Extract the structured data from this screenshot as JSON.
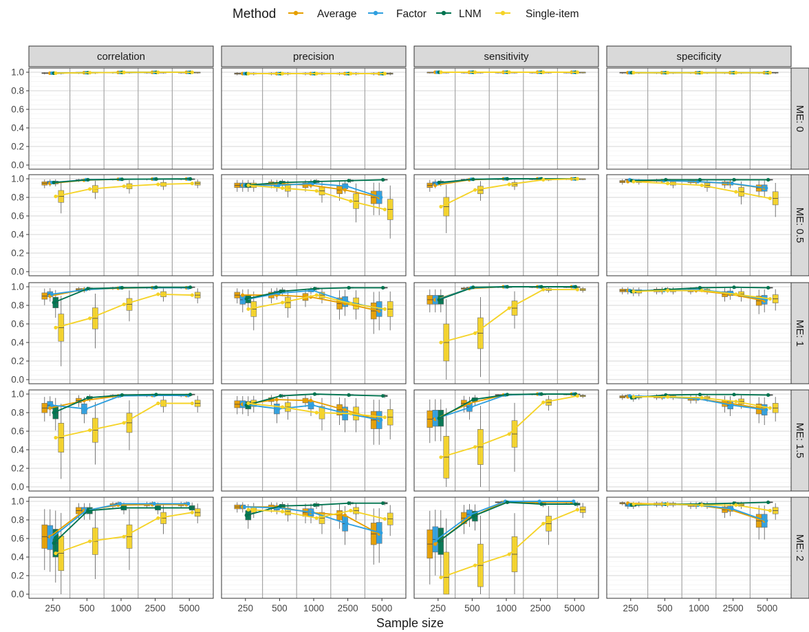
{
  "legend": {
    "title": "Method",
    "items": [
      {
        "name": "Average",
        "color": "#E69F00"
      },
      {
        "name": "Factor",
        "color": "#2E9FDF"
      },
      {
        "name": "LNM",
        "color": "#00734F"
      },
      {
        "name": "Single-item",
        "color": "#F5D327"
      }
    ]
  },
  "chart_data": {
    "type": "line",
    "xlabel": "Sample size",
    "x_tick_labels": [
      "250",
      "500",
      "1000",
      "2500",
      "5000"
    ],
    "y_tick_labels": [
      "0.0",
      "0.2",
      "0.4",
      "0.6",
      "0.8",
      "1.0"
    ],
    "ylim": [
      0,
      1
    ],
    "facet_columns": [
      "correlation",
      "precision",
      "sensitivity",
      "specificity"
    ],
    "facet_rows": [
      "ME: 0",
      "ME: 0.5",
      "ME: 1",
      "ME: 1.5",
      "ME: 2"
    ],
    "x": [
      250,
      500,
      1000,
      2500,
      5000
    ],
    "methods": [
      "Average",
      "Factor",
      "LNM",
      "Single-item"
    ],
    "panels": [
      {
        "row": "ME: 0",
        "metric": "correlation",
        "series": {
          "Average": [
            0.99,
            0.995,
            0.998,
            0.999,
            0.999
          ],
          "Factor": [
            0.99,
            0.995,
            0.998,
            0.999,
            0.999
          ],
          "LNM": [
            0.99,
            0.995,
            0.998,
            0.999,
            0.999
          ],
          "Single-item": [
            0.99,
            0.995,
            0.998,
            0.999,
            0.999
          ]
        }
      },
      {
        "row": "ME: 0",
        "metric": "precision",
        "series": {
          "Average": [
            0.985,
            0.985,
            0.985,
            0.985,
            0.985
          ],
          "Factor": [
            0.985,
            0.985,
            0.985,
            0.985,
            0.985
          ],
          "LNM": [
            0.985,
            0.985,
            0.985,
            0.985,
            0.985
          ],
          "Single-item": [
            0.985,
            0.985,
            0.985,
            0.985,
            0.985
          ]
        }
      },
      {
        "row": "ME: 0",
        "metric": "sensitivity",
        "series": {
          "Average": [
            1,
            1,
            1,
            1,
            1
          ],
          "Factor": [
            1,
            1,
            1,
            1,
            1
          ],
          "LNM": [
            1,
            1,
            1,
            1,
            1
          ],
          "Single-item": [
            1,
            1,
            1,
            1,
            1
          ]
        }
      },
      {
        "row": "ME: 0",
        "metric": "specificity",
        "series": {
          "Average": [
            0.995,
            0.995,
            0.995,
            0.995,
            0.995
          ],
          "Factor": [
            0.995,
            0.995,
            0.995,
            0.995,
            0.995
          ],
          "LNM": [
            0.995,
            0.995,
            0.995,
            0.995,
            0.995
          ],
          "Single-item": [
            0.995,
            0.995,
            0.995,
            0.995,
            0.995
          ]
        }
      },
      {
        "row": "ME: 0.5",
        "metric": "correlation",
        "series": {
          "Average": [
            0.95,
            0.985,
            0.995,
            0.997,
            0.998
          ],
          "Factor": [
            0.96,
            0.99,
            0.995,
            0.997,
            0.998
          ],
          "LNM": [
            0.96,
            0.99,
            0.995,
            0.998,
            0.999
          ],
          "Single-item": [
            0.81,
            0.89,
            0.92,
            0.94,
            0.95
          ]
        }
      },
      {
        "row": "ME: 0.5",
        "metric": "precision",
        "series": {
          "Average": [
            0.93,
            0.95,
            0.93,
            0.88,
            0.8
          ],
          "Factor": [
            0.93,
            0.93,
            0.95,
            0.92,
            0.8
          ],
          "LNM": [
            0.93,
            0.96,
            0.97,
            0.98,
            0.99
          ],
          "Single-item": [
            0.93,
            0.9,
            0.87,
            0.76,
            0.67
          ]
        }
      },
      {
        "row": "ME: 0.5",
        "metric": "sensitivity",
        "series": {
          "Average": [
            0.93,
            0.99,
            1,
            1,
            1
          ],
          "Factor": [
            0.95,
            0.995,
            1,
            1,
            1
          ],
          "LNM": [
            0.96,
            0.995,
            1,
            1,
            1
          ],
          "Single-item": [
            0.7,
            0.88,
            0.94,
            0.99,
            1
          ]
        }
      },
      {
        "row": "ME: 0.5",
        "metric": "specificity",
        "series": {
          "Average": [
            0.97,
            0.98,
            0.97,
            0.95,
            0.9
          ],
          "Factor": [
            0.99,
            0.98,
            0.97,
            0.95,
            0.9
          ],
          "LNM": [
            0.98,
            0.99,
            0.99,
            0.99,
            0.99
          ],
          "Single-item": [
            0.97,
            0.95,
            0.93,
            0.86,
            0.79
          ]
        }
      },
      {
        "row": "ME: 1",
        "metric": "correlation",
        "series": {
          "Average": [
            0.9,
            0.97,
            0.985,
            0.99,
            0.99
          ],
          "Factor": [
            0.92,
            0.97,
            0.99,
            0.99,
            0.99
          ],
          "LNM": [
            0.83,
            0.98,
            0.99,
            0.995,
            0.995
          ],
          "Single-item": [
            0.56,
            0.66,
            0.81,
            0.92,
            0.91
          ]
        }
      },
      {
        "row": "ME: 1",
        "metric": "precision",
        "series": {
          "Average": [
            0.91,
            0.91,
            0.89,
            0.82,
            0.74
          ],
          "Factor": [
            0.86,
            0.93,
            0.96,
            0.84,
            0.76
          ],
          "LNM": [
            0.87,
            0.95,
            0.98,
            0.99,
            0.99
          ],
          "Single-item": [
            0.76,
            0.83,
            0.91,
            0.82,
            0.76
          ]
        }
      },
      {
        "row": "ME: 1",
        "metric": "sensitivity",
        "series": {
          "Average": [
            0.86,
            0.98,
            1,
            1,
            1
          ],
          "Factor": [
            0.86,
            0.99,
            1,
            1,
            1
          ],
          "LNM": [
            0.86,
            0.995,
            1,
            1,
            1
          ],
          "Single-item": [
            0.4,
            0.5,
            0.77,
            0.97,
            0.97
          ]
        }
      },
      {
        "row": "ME: 1",
        "metric": "specificity",
        "series": {
          "Average": [
            0.96,
            0.96,
            0.96,
            0.92,
            0.85
          ],
          "Factor": [
            0.96,
            0.96,
            0.97,
            0.93,
            0.86
          ],
          "LNM": [
            0.95,
            0.97,
            0.99,
            0.995,
            0.99
          ],
          "Single-item": [
            0.95,
            0.96,
            0.96,
            0.92,
            0.87
          ]
        }
      },
      {
        "row": "ME: 1.5",
        "metric": "correlation",
        "series": {
          "Average": [
            0.85,
            0.93,
            0.98,
            0.985,
            0.985
          ],
          "Factor": [
            0.88,
            0.84,
            0.98,
            0.985,
            0.985
          ],
          "LNM": [
            0.8,
            0.96,
            0.99,
            0.995,
            0.995
          ],
          "Single-item": [
            0.53,
            0.61,
            0.69,
            0.9,
            0.9
          ]
        }
      },
      {
        "row": "ME: 1.5",
        "metric": "precision",
        "series": {
          "Average": [
            0.89,
            0.94,
            0.93,
            0.83,
            0.72
          ],
          "Factor": [
            0.89,
            0.84,
            0.88,
            0.79,
            0.72
          ],
          "LNM": [
            0.88,
            0.98,
            1,
            0.99,
            0.98
          ],
          "Single-item": [
            0.9,
            0.86,
            0.8,
            0.79,
            0.75
          ]
        }
      },
      {
        "row": "ME: 1.5",
        "metric": "sensitivity",
        "series": {
          "Average": [
            0.73,
            0.9,
            0.99,
            1,
            1
          ],
          "Factor": [
            0.74,
            0.86,
            0.99,
            1,
            1
          ],
          "LNM": [
            0.74,
            0.94,
            0.995,
            1,
            1
          ],
          "Single-item": [
            0.32,
            0.43,
            0.57,
            0.91,
            0.98
          ]
        }
      },
      {
        "row": "ME: 1.5",
        "metric": "specificity",
        "series": {
          "Average": [
            0.97,
            0.97,
            0.95,
            0.9,
            0.84
          ],
          "Factor": [
            0.98,
            0.97,
            0.95,
            0.88,
            0.83
          ],
          "LNM": [
            0.96,
            0.99,
            0.995,
            0.995,
            0.99
          ],
          "Single-item": [
            0.97,
            0.97,
            0.96,
            0.92,
            0.85
          ]
        }
      },
      {
        "row": "ME: 2",
        "metric": "correlation",
        "series": {
          "Average": [
            0.62,
            0.9,
            0.96,
            0.965,
            0.965
          ],
          "Factor": [
            0.61,
            0.9,
            0.975,
            0.975,
            0.975
          ],
          "LNM": [
            0.55,
            0.9,
            0.93,
            0.93,
            0.93
          ],
          "Single-item": [
            0.44,
            0.57,
            0.62,
            0.82,
            0.88
          ]
        }
      },
      {
        "row": "ME: 2",
        "metric": "precision",
        "series": {
          "Average": [
            0.94,
            0.94,
            0.88,
            0.85,
            0.65
          ],
          "Factor": [
            0.94,
            0.93,
            0.88,
            0.76,
            0.66
          ],
          "LNM": [
            0.85,
            0.95,
            0.96,
            0.98,
            0.98
          ],
          "Single-item": [
            0.91,
            0.89,
            0.82,
            0.9,
            0.81
          ]
        }
      },
      {
        "row": "ME: 2",
        "metric": "sensitivity",
        "series": {
          "Average": [
            0.54,
            0.82,
            0.99,
            0.99,
            0.99
          ],
          "Factor": [
            0.59,
            0.86,
            1,
            1,
            1
          ],
          "LNM": [
            0.57,
            0.84,
            0.99,
            0.97,
            0.97
          ],
          "Single-item": [
            0.18,
            0.31,
            0.43,
            0.76,
            0.91
          ]
        }
      },
      {
        "row": "ME: 2",
        "metric": "specificity",
        "series": {
          "Average": [
            0.98,
            0.97,
            0.96,
            0.91,
            0.79
          ],
          "Factor": [
            0.96,
            0.97,
            0.96,
            0.92,
            0.79
          ],
          "LNM": [
            0.96,
            0.97,
            0.97,
            0.98,
            0.99
          ],
          "Single-item": [
            0.97,
            0.97,
            0.96,
            0.96,
            0.9
          ]
        }
      }
    ]
  }
}
